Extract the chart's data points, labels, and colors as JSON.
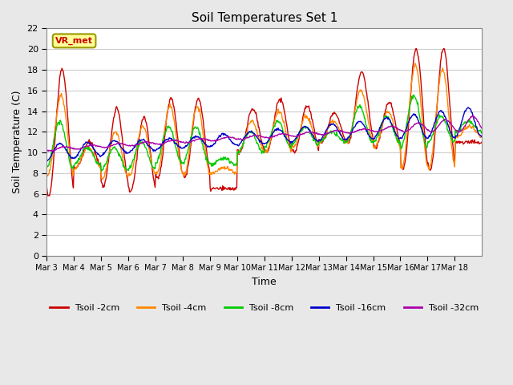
{
  "title": "Soil Temperatures Set 1",
  "xlabel": "Time",
  "ylabel": "Soil Temperature (C)",
  "ylim": [
    0,
    22
  ],
  "yticks": [
    0,
    2,
    4,
    6,
    8,
    10,
    12,
    14,
    16,
    18,
    20,
    22
  ],
  "xtick_labels": [
    "Mar 3",
    "Mar 4",
    "Mar 5",
    "Mar 6",
    "Mar 7",
    "Mar 8",
    "Mar 9",
    "Mar 10",
    "Mar 11",
    "Mar 12",
    "Mar 13",
    "Mar 14",
    "Mar 15",
    "Mar 16",
    "Mar 17",
    "Mar 18"
  ],
  "annotation_text": "VR_met",
  "series": [
    {
      "label": "Tsoil -2cm",
      "color": "#cc0000"
    },
    {
      "label": "Tsoil -4cm",
      "color": "#ff8800"
    },
    {
      "label": "Tsoil -8cm",
      "color": "#00cc00"
    },
    {
      "label": "Tsoil -16cm",
      "color": "#0000cc"
    },
    {
      "label": "Tsoil -32cm",
      "color": "#aa00aa"
    }
  ],
  "fig_bg_color": "#e8e8e8",
  "plot_bg_color": "#ffffff",
  "grid_color": "#cccccc"
}
